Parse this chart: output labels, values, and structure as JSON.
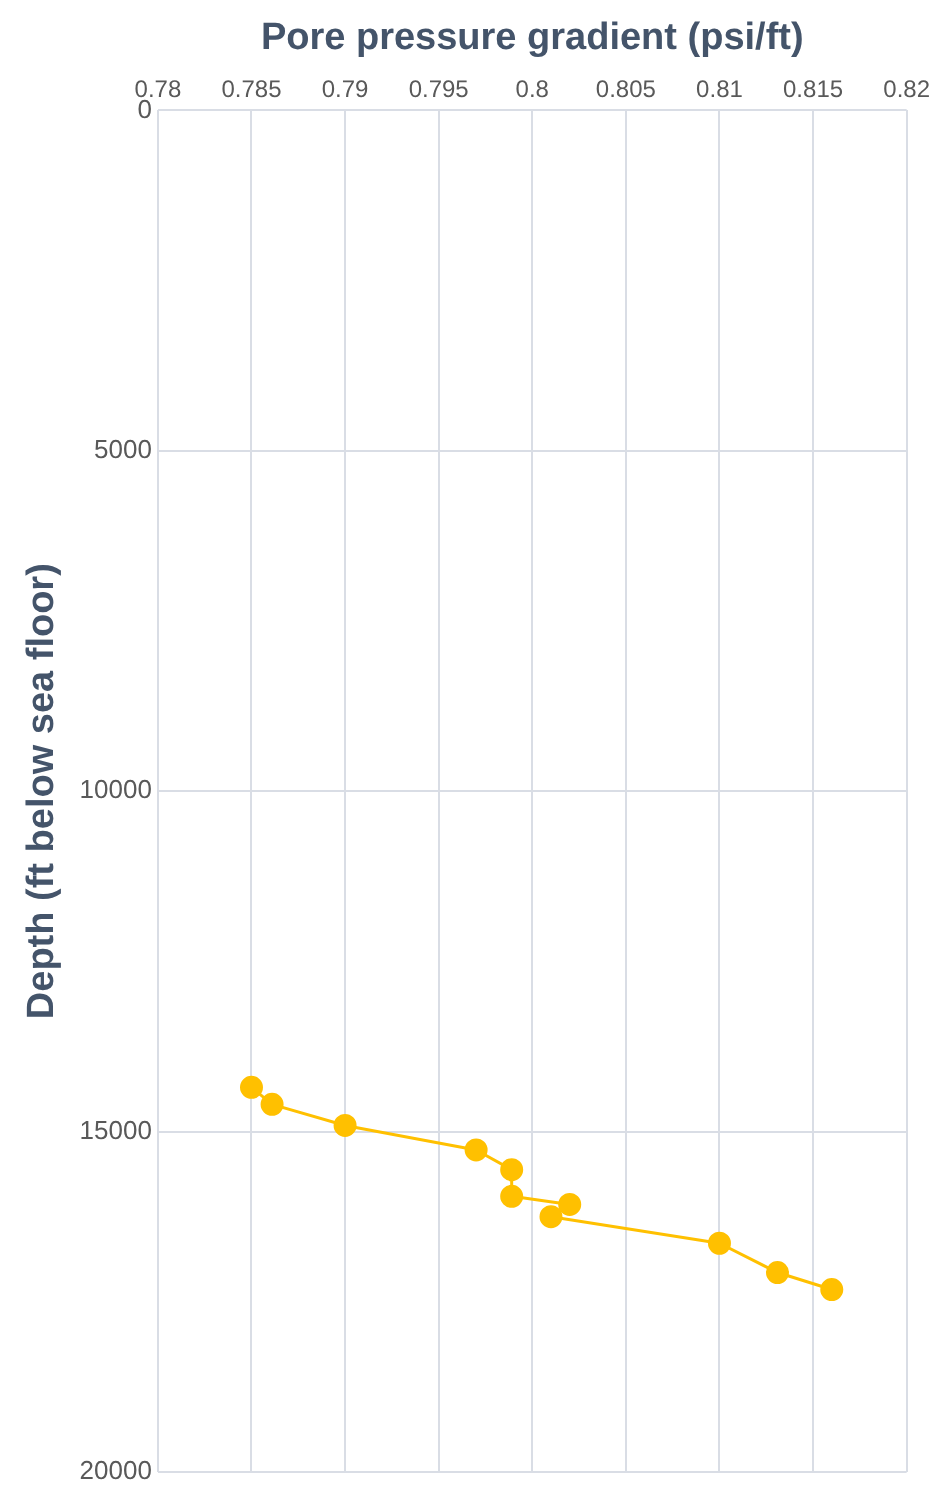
{
  "chart_data": {
    "type": "line",
    "xlabel": "Pore pressure gradient (psi/ft)",
    "ylabel": "Depth (ft below sea floor)",
    "x": [
      0.785,
      0.7861,
      0.79,
      0.797,
      0.7989,
      0.7989,
      0.802,
      0.801,
      0.81,
      0.8131,
      0.816
    ],
    "values": [
      14350,
      14600,
      14910,
      15270,
      15560,
      15950,
      16070,
      16250,
      16640,
      17070,
      17320
    ],
    "color": "#ffc000",
    "marker": "circle",
    "line_style": "solid",
    "xlim": [
      0.78,
      0.82
    ],
    "xticks": [
      0.78,
      0.785,
      0.79,
      0.795,
      0.8,
      0.805,
      0.81,
      0.815,
      0.82
    ],
    "ylim": [
      20000,
      0
    ],
    "yticks": [
      0,
      5000,
      10000,
      15000,
      20000
    ],
    "grid": true,
    "legend": false
  }
}
